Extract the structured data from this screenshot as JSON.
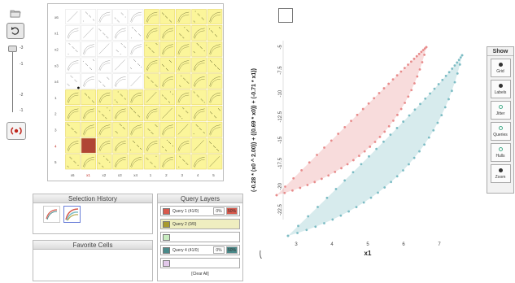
{
  "slider": {
    "ticks": [
      "-3",
      "-1",
      "-2",
      "-1"
    ]
  },
  "matrix": {
    "row_labels": [
      "x6",
      "x1",
      "x2",
      "x3",
      "x4",
      "1",
      "2",
      "3",
      "4",
      "5"
    ],
    "col_labels": [
      "x6",
      "x1",
      "x2",
      "x3",
      "x4",
      "1",
      "2",
      "3",
      "4",
      "5"
    ],
    "selected_cell": {
      "row": 8,
      "col": 1
    },
    "colors": {
      "highlight": "#fbf59a",
      "plain": "#ffffff",
      "selected": "#b04535"
    }
  },
  "selection_history": {
    "title": "Selection History"
  },
  "favorite_cells": {
    "title": "Favorite Cells"
  },
  "query_layers": {
    "title": "Query Layers",
    "layers": [
      {
        "label": "Query 1 (41/0)",
        "color": "#d9594c",
        "pct": "0%",
        "pct2": "50%",
        "active": false
      },
      {
        "label": "Query 2 (0/0)",
        "color": "#a89a2e",
        "pct": "",
        "pct2": "",
        "active": true
      },
      {
        "label": "",
        "color": "#c8ecc0",
        "pct": "",
        "pct2": "",
        "active": false
      },
      {
        "label": "Query 4 (41/0)",
        "color": "#4a8a8a",
        "pct": "0%",
        "pct2": "50%",
        "active": false
      },
      {
        "label": "",
        "color": "#e2c8ea",
        "pct": "",
        "pct2": "",
        "active": false
      }
    ],
    "clear_label": "[Clear All]"
  },
  "plot": {
    "ylabel": "(-0.28 * (x0 ^ 2.00)) + ((0.69 * x0)) + (-0.71 * x1))",
    "xlabel": "x1",
    "x_ticks": [
      "3",
      "4",
      "5",
      "6",
      "7"
    ],
    "y_ticks": [
      "-5",
      "-7.5",
      "-10",
      "-12.5",
      "-15",
      "-17.5",
      "-20",
      "-22.5"
    ],
    "colors": {
      "red_series": "#e88c8c",
      "teal_series": "#7cbcc4"
    }
  },
  "show_panel": {
    "title": "Show",
    "buttons": [
      {
        "label": "Grid",
        "style": "solid"
      },
      {
        "label": "Labels",
        "style": "solid"
      },
      {
        "label": "Jitter",
        "style": "ring"
      },
      {
        "label": "Queries",
        "style": "ring"
      },
      {
        "label": "Hulls",
        "style": "ring"
      },
      {
        "label": "Zoom",
        "style": "solid"
      }
    ]
  }
}
